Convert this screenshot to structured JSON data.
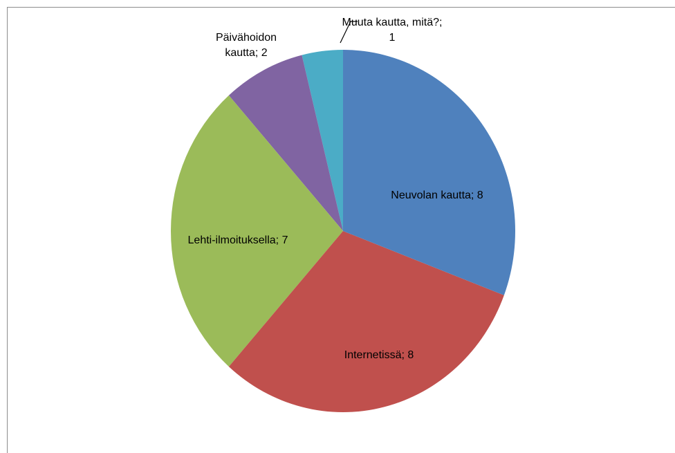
{
  "chart_data": {
    "type": "pie",
    "labels": [
      "Neuvolan kautta; 8",
      "Internetissä; 8",
      "Lehti-ilmoituksella; 7",
      "Päivähoidon kautta; 2",
      "Muuta kautta, mitä?; 1"
    ],
    "values": [
      8,
      8,
      7,
      2,
      1
    ],
    "colors": [
      "#4f81bd",
      "#c0504d",
      "#9bbb59",
      "#8064a2",
      "#4bacc6"
    ]
  }
}
